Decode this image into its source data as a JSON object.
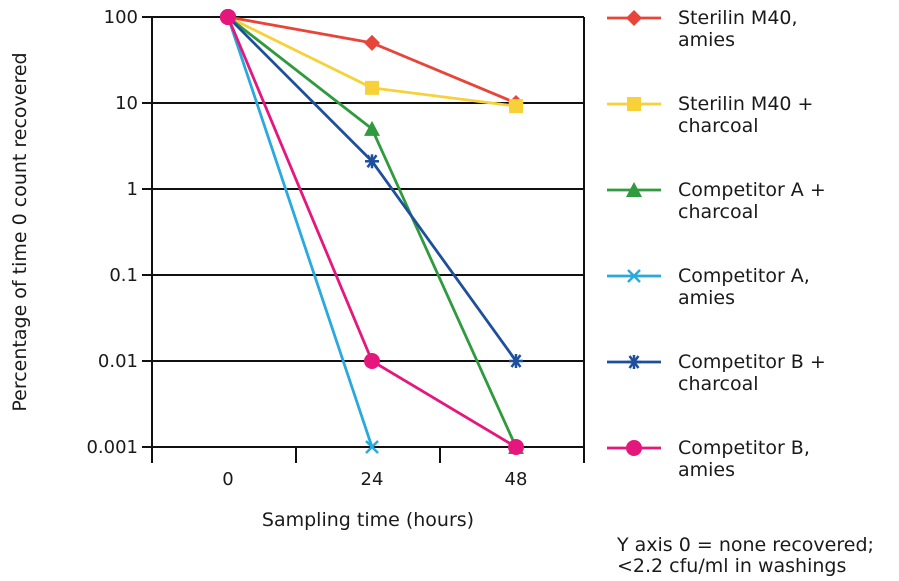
{
  "chart_data": {
    "type": "line",
    "title": "",
    "xlabel": "Sampling time (hours)",
    "ylabel": "Percentage of time 0 count recovered",
    "x_ticks": [
      "0",
      "24",
      "48"
    ],
    "y_ticks": [
      "100",
      "10",
      "1",
      "0.1",
      "0.01",
      "0.001"
    ],
    "y_scale": "log",
    "ylim": [
      0.001,
      100
    ],
    "grid": "horizontal",
    "legend_placement": "right",
    "series": [
      {
        "name_lines": [
          "Sterilin M40,",
          "amies"
        ],
        "color": "#e8443a",
        "marker": "diamond",
        "x": [
          0,
          24,
          48
        ],
        "y": [
          100,
          50,
          10
        ]
      },
      {
        "name_lines": [
          "Sterilin M40 +",
          "charcoal"
        ],
        "color": "#f7d137",
        "marker": "square",
        "x": [
          0,
          24,
          48
        ],
        "y": [
          100,
          15,
          9.2
        ]
      },
      {
        "name_lines": [
          "Competitor A +",
          "charcoal"
        ],
        "color": "#2f9a3e",
        "marker": "triangle",
        "x": [
          0,
          24,
          48
        ],
        "y": [
          100,
          5,
          0.001
        ]
      },
      {
        "name_lines": [
          "Competitor A,",
          "amies"
        ],
        "color": "#2aa9de",
        "marker": "x",
        "x": [
          0,
          24
        ],
        "y": [
          100,
          0.001
        ]
      },
      {
        "name_lines": [
          "Competitor B +",
          "charcoal"
        ],
        "color": "#1d4f9c",
        "marker": "asterisk",
        "x": [
          0,
          24,
          48
        ],
        "y": [
          100,
          2.1,
          0.01
        ]
      },
      {
        "name_lines": [
          "Competitor B,",
          "amies"
        ],
        "color": "#e5177d",
        "marker": "circle",
        "x": [
          0,
          24,
          48
        ],
        "y": [
          100,
          0.01,
          0.001
        ]
      }
    ],
    "note_lines": [
      "Y axis 0 = none recovered;",
      "<2.2 cfu/ml in washings"
    ]
  }
}
